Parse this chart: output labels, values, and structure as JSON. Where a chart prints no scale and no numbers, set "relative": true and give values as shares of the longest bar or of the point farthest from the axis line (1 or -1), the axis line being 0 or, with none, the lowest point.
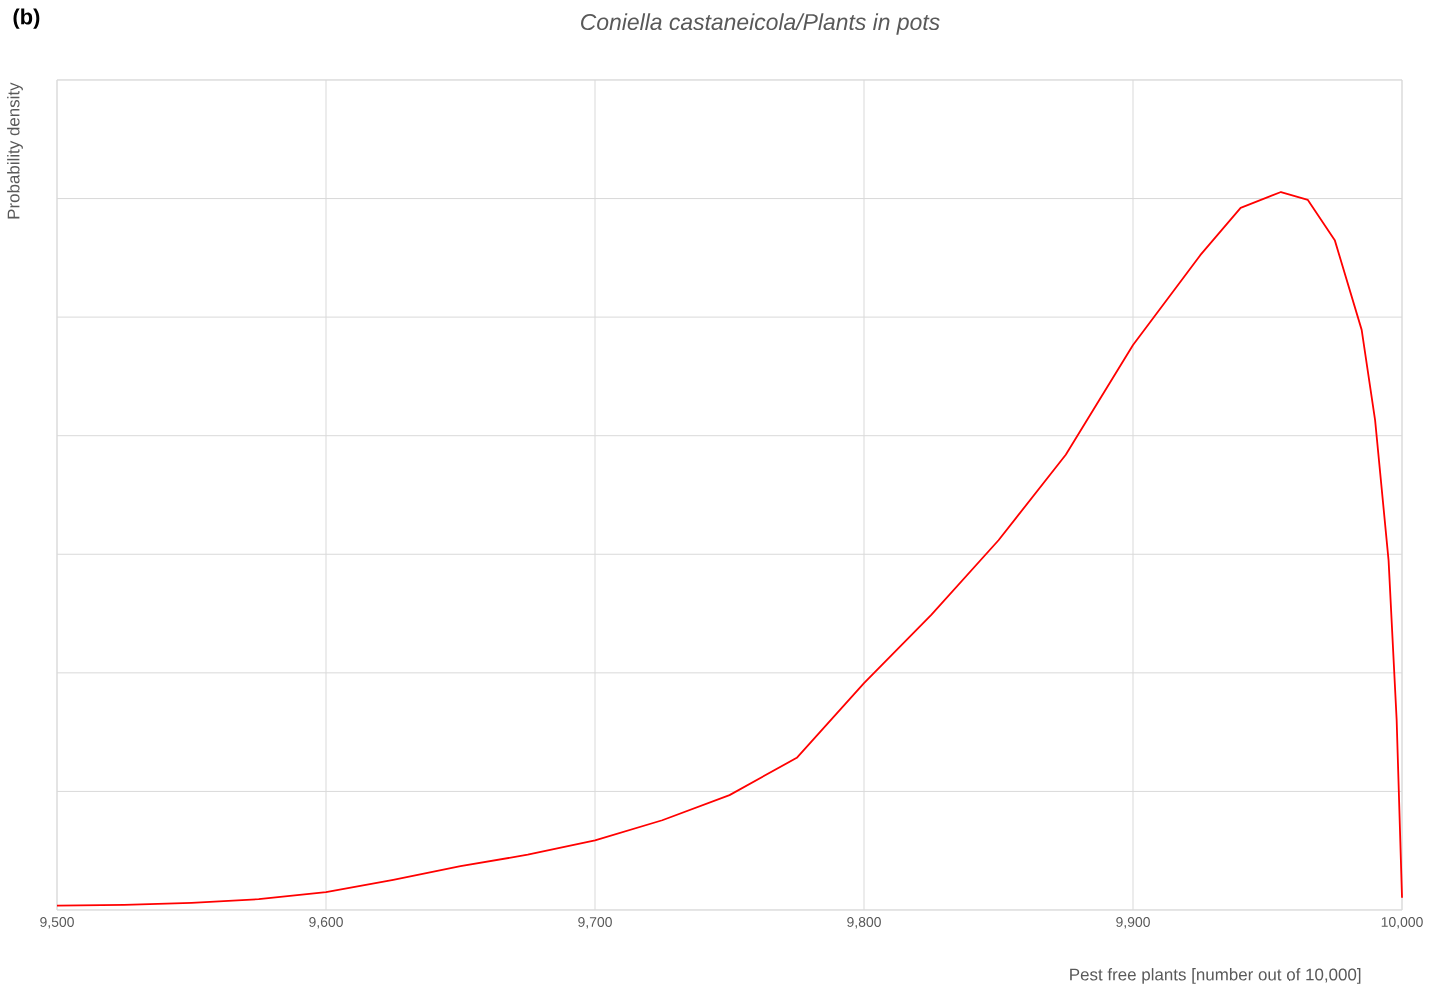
{
  "chart_data": {
    "type": "line",
    "title": "Coniella castaneicola/Plants in pots",
    "xlabel": "Pest free plants [number out of 10,000]",
    "ylabel": "Probability density",
    "annotations": [
      "(b)"
    ],
    "relative": true,
    "grid": true,
    "marker": "none",
    "line_style": "solid",
    "xlim": [
      9500,
      10000
    ],
    "xticks": [
      {
        "value": 9500,
        "label": "9,500"
      },
      {
        "value": 9600,
        "label": "9,600"
      },
      {
        "value": 9700,
        "label": "9,700"
      },
      {
        "value": 9800,
        "label": "9,800"
      },
      {
        "value": 9900,
        "label": "9,900"
      },
      {
        "value": 10000,
        "label": "10,000"
      }
    ],
    "x": [
      9500,
      9525,
      9550,
      9575,
      9600,
      9625,
      9650,
      9675,
      9700,
      9725,
      9750,
      9775,
      9800,
      9825,
      9850,
      9875,
      9900,
      9925,
      9940,
      9955,
      9965,
      9975,
      9985,
      9990,
      9995,
      9998,
      10000
    ],
    "series": [
      {
        "color": "#ff0000",
        "values": [
          0.006,
          0.007,
          0.01,
          0.015,
          0.025,
          0.042,
          0.061,
          0.077,
          0.097,
          0.125,
          0.16,
          0.212,
          0.316,
          0.411,
          0.515,
          0.634,
          0.787,
          0.912,
          0.978,
          1.0,
          0.989,
          0.933,
          0.808,
          0.682,
          0.487,
          0.265,
          0.017
        ]
      }
    ]
  }
}
